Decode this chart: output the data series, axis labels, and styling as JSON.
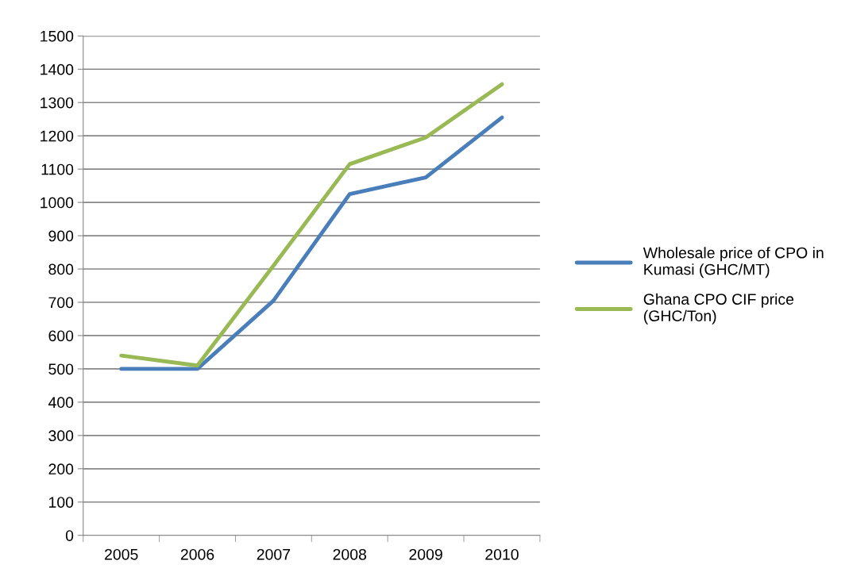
{
  "chart_data": {
    "type": "line",
    "categories": [
      "2005",
      "2006",
      "2007",
      "2008",
      "2009",
      "2010"
    ],
    "series": [
      {
        "name": "Wholesale price of CPO in Kumasi (GHC/MT)",
        "color": "#4a7ebb",
        "values": [
          500,
          500,
          705,
          1025,
          1075,
          1255
        ]
      },
      {
        "name": "Ghana CPO CIF price (GHC/Ton)",
        "color": "#98b954",
        "values": [
          540,
          510,
          810,
          1115,
          1195,
          1355
        ]
      }
    ],
    "ylim": [
      0,
      1500
    ],
    "yticks": [
      0,
      100,
      200,
      300,
      400,
      500,
      600,
      700,
      800,
      900,
      1000,
      1100,
      1200,
      1300,
      1400,
      1500
    ],
    "grid": "y",
    "legend": "right",
    "marker": "none",
    "line_style": "solid"
  }
}
